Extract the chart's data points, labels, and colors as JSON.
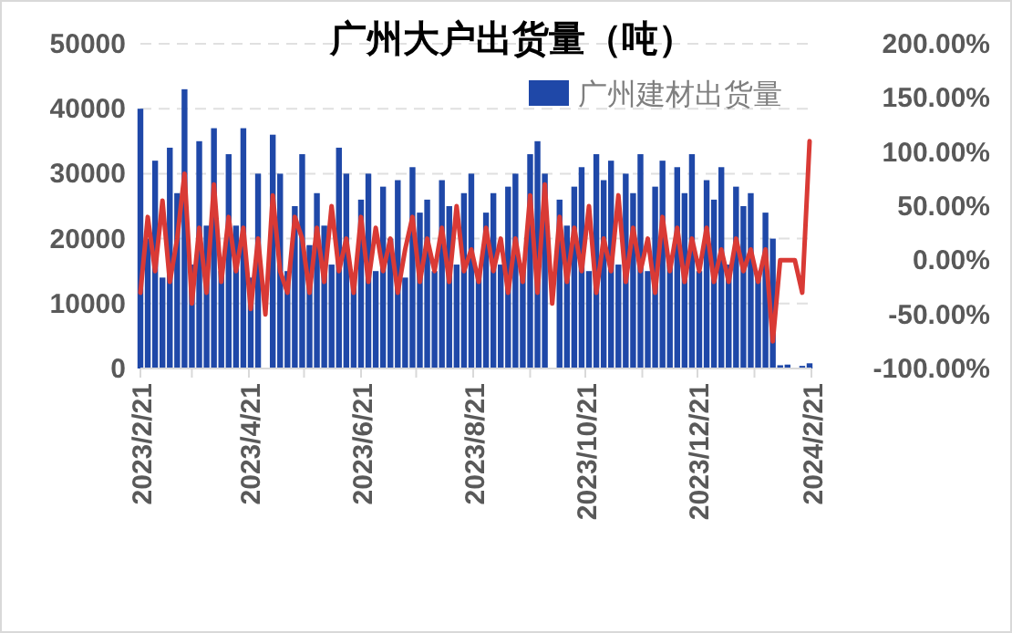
{
  "chart_data": {
    "type": "bar",
    "title": "广州大户出货量（吨）",
    "x": [
      "2023-02-21",
      "2023-02-25",
      "2023-03-01",
      "2023-03-05",
      "2023-03-09",
      "2023-03-13",
      "2023-03-17",
      "2023-03-21",
      "2023-03-25",
      "2023-03-29",
      "2023-04-02",
      "2023-04-06",
      "2023-04-10",
      "2023-04-14",
      "2023-04-18",
      "2023-04-22",
      "2023-04-26",
      "2023-04-30",
      "2023-05-04",
      "2023-05-08",
      "2023-05-12",
      "2023-05-16",
      "2023-05-20",
      "2023-05-24",
      "2023-05-28",
      "2023-06-01",
      "2023-06-05",
      "2023-06-09",
      "2023-06-13",
      "2023-06-17",
      "2023-06-21",
      "2023-06-25",
      "2023-06-29",
      "2023-07-03",
      "2023-07-07",
      "2023-07-11",
      "2023-07-15",
      "2023-07-19",
      "2023-07-23",
      "2023-07-27",
      "2023-07-31",
      "2023-08-04",
      "2023-08-08",
      "2023-08-12",
      "2023-08-16",
      "2023-08-20",
      "2023-08-24",
      "2023-08-28",
      "2023-09-01",
      "2023-09-05",
      "2023-09-09",
      "2023-09-13",
      "2023-09-17",
      "2023-09-21",
      "2023-09-25",
      "2023-09-29",
      "2023-10-03",
      "2023-10-07",
      "2023-10-11",
      "2023-10-15",
      "2023-10-19",
      "2023-10-23",
      "2023-10-27",
      "2023-10-31",
      "2023-11-04",
      "2023-11-08",
      "2023-11-12",
      "2023-11-16",
      "2023-11-20",
      "2023-11-24",
      "2023-11-28",
      "2023-12-02",
      "2023-12-06",
      "2023-12-10",
      "2023-12-14",
      "2023-12-18",
      "2023-12-22",
      "2023-12-26",
      "2023-12-30",
      "2024-01-03",
      "2024-01-07",
      "2024-01-11",
      "2024-01-15",
      "2024-01-19",
      "2024-01-23",
      "2024-01-27",
      "2024-01-31",
      "2024-02-04",
      "2024-02-08",
      "2024-02-12",
      "2024-02-16",
      "2024-02-20"
    ],
    "series": [
      {
        "name": "广州建材出货量",
        "color": "#1f48a8",
        "values": [
          40000,
          20000,
          32000,
          14000,
          34000,
          27000,
          43000,
          16000,
          35000,
          22000,
          37000,
          15000,
          33000,
          22000,
          37000,
          14000,
          30000,
          null,
          36000,
          30000,
          15000,
          25000,
          33000,
          19000,
          27000,
          22000,
          16000,
          34000,
          30000,
          14000,
          26000,
          30000,
          15000,
          28000,
          20000,
          29000,
          14000,
          31000,
          24000,
          26000,
          15000,
          29000,
          25000,
          16000,
          27000,
          30000,
          15000,
          24000,
          27000,
          16000,
          28000,
          30000,
          15000,
          33000,
          35000,
          30000,
          null,
          26000,
          22000,
          28000,
          31000,
          15000,
          33000,
          29000,
          32000,
          16000,
          30000,
          27000,
          33000,
          15000,
          28000,
          32000,
          16000,
          31000,
          27000,
          33000,
          15000,
          29000,
          26000,
          31000,
          16000,
          28000,
          25000,
          27000,
          14000,
          24000,
          20000,
          500,
          600,
          null,
          400,
          800
        ]
      },
      {
        "type": "line",
        "axis": "y2",
        "color": "#d93a35",
        "values": [
          -30,
          40,
          -10,
          55,
          -20,
          20,
          80,
          -40,
          30,
          -30,
          70,
          -20,
          40,
          -10,
          30,
          -45,
          20,
          -50,
          60,
          -10,
          -30,
          40,
          20,
          -30,
          30,
          -20,
          50,
          -10,
          20,
          -30,
          40,
          -20,
          30,
          -10,
          20,
          -30,
          10,
          40,
          -20,
          20,
          -10,
          30,
          -20,
          50,
          -10,
          10,
          -20,
          30,
          -10,
          20,
          -30,
          20,
          -20,
          60,
          -30,
          70,
          -40,
          40,
          -20,
          30,
          -10,
          50,
          -30,
          20,
          -10,
          60,
          -20,
          30,
          -10,
          20,
          -30,
          40,
          -10,
          30,
          -20,
          20,
          -10,
          30,
          -20,
          10,
          -20,
          20,
          -10,
          10,
          -20,
          10,
          -75,
          0,
          0,
          0,
          -30,
          110
        ]
      }
    ],
    "ylim": [
      0,
      50000
    ],
    "yticks": [
      0,
      10000,
      20000,
      30000,
      40000,
      50000
    ],
    "y2lim": [
      -100,
      200
    ],
    "y2ticks": [
      {
        "value": -100,
        "label": "-100.00%"
      },
      {
        "value": -50,
        "label": "-50.00%"
      },
      {
        "value": 0,
        "label": "0.00%"
      },
      {
        "value": 50,
        "label": "50.00%"
      },
      {
        "value": 100,
        "label": "100.00%"
      },
      {
        "value": 150,
        "label": "150.00%"
      },
      {
        "value": 200,
        "label": "200.00%"
      }
    ],
    "xlim": [
      "2023-02-21",
      "2024-02-21"
    ],
    "xticks": [
      {
        "value": "2023-02-21",
        "label": "2023/2/21"
      },
      {
        "value": "2023-03-21",
        "label": null
      },
      {
        "value": "2023-04-21",
        "label": "2023/4/21"
      },
      {
        "value": "2023-05-21",
        "label": null
      },
      {
        "value": "2023-06-21",
        "label": "2023/6/21"
      },
      {
        "value": "2023-07-21",
        "label": null
      },
      {
        "value": "2023-08-21",
        "label": "2023/8/21"
      },
      {
        "value": "2023-09-21",
        "label": null
      },
      {
        "value": "2023-10-21",
        "label": "2023/10/21"
      },
      {
        "value": "2023-11-21",
        "label": null
      },
      {
        "value": "2023-12-21",
        "label": "2023/12/21"
      },
      {
        "value": "2024-01-21",
        "label": null
      },
      {
        "value": "2024-02-21",
        "label": "2024/2/21"
      }
    ],
    "grid": "y",
    "legend": "top right",
    "line_style": "solid"
  }
}
